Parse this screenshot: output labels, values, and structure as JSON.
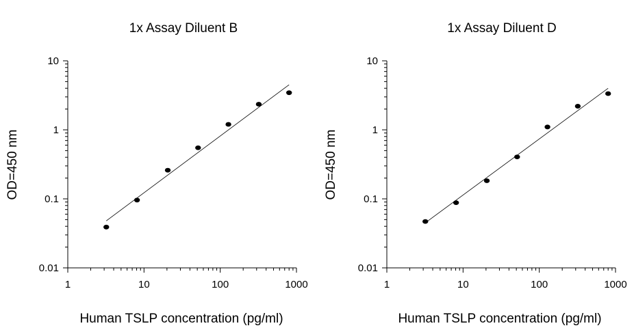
{
  "chart_data": [
    {
      "type": "scatter",
      "title": "1x Assay Diluent B",
      "xlabel": "Human TSLP concentration (pg/ml)",
      "ylabel": "OD=450 nm",
      "xscale": "log",
      "yscale": "log",
      "xlim": [
        1,
        1000
      ],
      "ylim": [
        0.01,
        10
      ],
      "xticks": [
        "1",
        "10",
        "100",
        "1000"
      ],
      "yticks": [
        "10",
        "1",
        "0.1",
        "0.01"
      ],
      "grid": false,
      "points": [
        {
          "x": 3.2,
          "y": 0.039
        },
        {
          "x": 8.1,
          "y": 0.096
        },
        {
          "x": 20.5,
          "y": 0.26
        },
        {
          "x": 51.2,
          "y": 0.55
        },
        {
          "x": 128,
          "y": 1.2
        },
        {
          "x": 320,
          "y": 2.35
        },
        {
          "x": 800,
          "y": 3.45
        }
      ],
      "fit_line": [
        {
          "x": 3.2,
          "y": 0.048
        },
        {
          "x": 800,
          "y": 4.5
        }
      ]
    },
    {
      "type": "scatter",
      "title": "1x Assay Diluent D",
      "xlabel": "Human TSLP concentration (pg/ml)",
      "ylabel": "OD=450 nm",
      "xscale": "log",
      "yscale": "log",
      "xlim": [
        1,
        1000
      ],
      "ylim": [
        0.01,
        10
      ],
      "xticks": [
        "1",
        "10",
        "100",
        "1000"
      ],
      "yticks": [
        "10",
        "1",
        "0.1",
        "0.01"
      ],
      "grid": false,
      "points": [
        {
          "x": 3.2,
          "y": 0.047
        },
        {
          "x": 8.1,
          "y": 0.088
        },
        {
          "x": 20.5,
          "y": 0.183
        },
        {
          "x": 51.2,
          "y": 0.405
        },
        {
          "x": 128,
          "y": 1.1
        },
        {
          "x": 320,
          "y": 2.2
        },
        {
          "x": 800,
          "y": 3.35
        }
      ],
      "fit_line": [
        {
          "x": 3.2,
          "y": 0.045
        },
        {
          "x": 800,
          "y": 4.0
        }
      ]
    }
  ]
}
